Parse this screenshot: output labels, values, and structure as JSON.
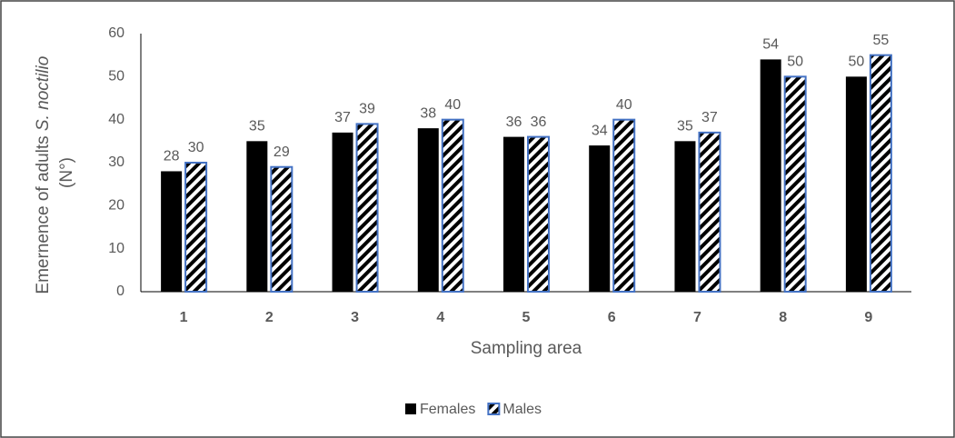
{
  "chart_data": {
    "type": "bar",
    "y_label": [
      "Emernence of adults",
      "S. noctilio",
      "(N°)"
    ],
    "x_label": "Sampling area",
    "categories": [
      "1",
      "2",
      "3",
      "4",
      "5",
      "6",
      "7",
      "8",
      "9"
    ],
    "series": [
      {
        "name": "Females",
        "color": "#000000",
        "values": [
          28,
          35,
          37,
          38,
          36,
          34,
          35,
          54,
          50
        ]
      },
      {
        "name": "Males",
        "color": "#4472c4",
        "values": [
          30,
          29,
          39,
          40,
          36,
          40,
          37,
          50,
          55
        ]
      }
    ],
    "ylim": [
      0,
      60
    ],
    "yticks": [
      0,
      10,
      20,
      30,
      40,
      50,
      60
    ],
    "grid": false,
    "legend": "bottom"
  }
}
